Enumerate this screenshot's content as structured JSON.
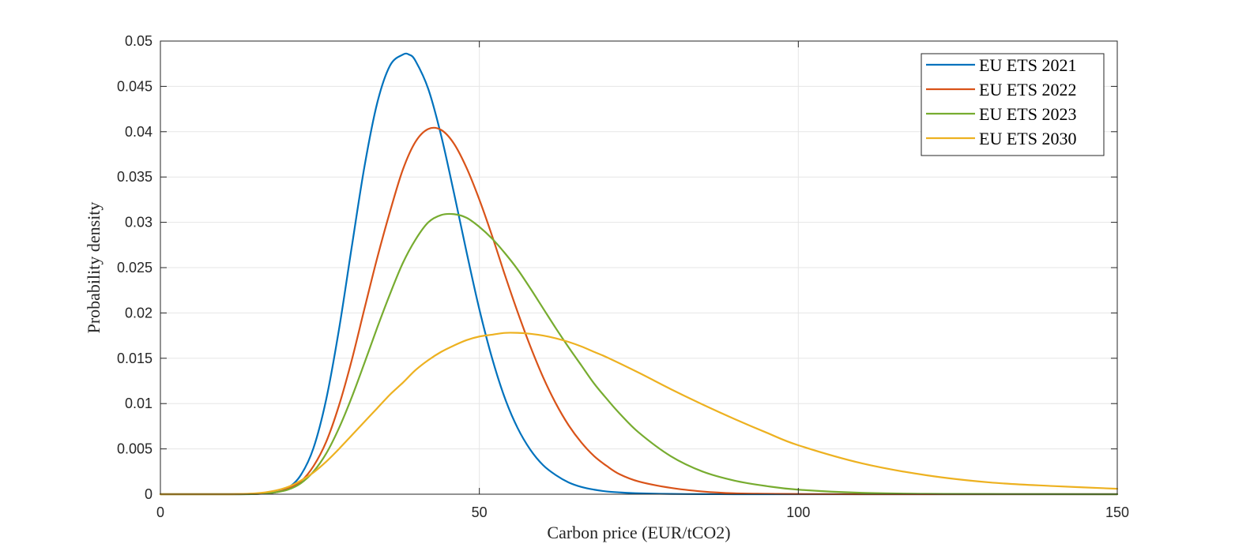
{
  "chart_data": {
    "type": "line",
    "xlabel": "Carbon price (EUR/tCO2)",
    "ylabel": "Probability density",
    "xlim": [
      0,
      150
    ],
    "ylim": [
      0,
      0.05
    ],
    "x_ticks": [
      0,
      50,
      100,
      150
    ],
    "x_tick_labels": [
      "0",
      "50",
      "100",
      "150"
    ],
    "y_ticks": [
      0,
      0.005,
      0.01,
      0.015,
      0.02,
      0.025,
      0.03,
      0.035,
      0.04,
      0.045,
      0.05
    ],
    "y_tick_labels": [
      "0",
      "0.005",
      "0.01",
      "0.015",
      "0.02",
      "0.025",
      "0.03",
      "0.035",
      "0.04",
      "0.045",
      "0.05"
    ],
    "grid": true,
    "legend_position": "top-right",
    "series": [
      {
        "name": "EU ETS 2021",
        "color": "#0072BD",
        "x": [
          0,
          10,
          15,
          18,
          20,
          22,
          24,
          26,
          28,
          30,
          32,
          34,
          36,
          38,
          39,
          40,
          42,
          44,
          46,
          48,
          50,
          52,
          54,
          56,
          58,
          60,
          62,
          64,
          66,
          68,
          70,
          72,
          75,
          80,
          85,
          90,
          95,
          100,
          110,
          120,
          150
        ],
        "y": [
          0,
          0,
          2e-05,
          0.0002,
          0.0007,
          0.0021,
          0.0051,
          0.0105,
          0.0182,
          0.0273,
          0.0362,
          0.0432,
          0.0473,
          0.0485,
          0.0485,
          0.0478,
          0.0447,
          0.0396,
          0.0333,
          0.0267,
          0.0204,
          0.015,
          0.0106,
          0.0073,
          0.0049,
          0.0032,
          0.0021,
          0.0013,
          0.0008,
          0.0005,
          0.0003,
          0.0002,
          0.0001,
          3e-05,
          1e-05,
          0,
          0,
          0,
          0,
          0,
          0
        ]
      },
      {
        "name": "EU ETS 2022",
        "color": "#D95319",
        "x": [
          0,
          10,
          15,
          18,
          20,
          22,
          24,
          26,
          28,
          30,
          32,
          34,
          36,
          38,
          40,
          42,
          44,
          46,
          48,
          50,
          52,
          54,
          56,
          58,
          60,
          62,
          64,
          66,
          68,
          70,
          72,
          75,
          80,
          85,
          90,
          95,
          100,
          110,
          120,
          150
        ],
        "y": [
          0,
          0,
          3e-05,
          0.0002,
          0.0006,
          0.0014,
          0.0031,
          0.0058,
          0.0098,
          0.0148,
          0.0205,
          0.0261,
          0.0312,
          0.0358,
          0.0389,
          0.0403,
          0.0402,
          0.0387,
          0.036,
          0.0325,
          0.0285,
          0.0242,
          0.0201,
          0.0163,
          0.0129,
          0.01,
          0.0076,
          0.0057,
          0.0042,
          0.0031,
          0.0022,
          0.0014,
          0.0007,
          0.0003,
          0.0001,
          5e-05,
          2e-05,
          0,
          0,
          0
        ]
      },
      {
        "name": "EU ETS 2023",
        "color": "#77AC30",
        "x": [
          0,
          10,
          15,
          18,
          20,
          22,
          24,
          26,
          28,
          30,
          32,
          34,
          36,
          38,
          40,
          42,
          44,
          46,
          48,
          50,
          52,
          54,
          56,
          58,
          60,
          62,
          64,
          66,
          68,
          70,
          72,
          75,
          80,
          85,
          90,
          95,
          100,
          110,
          120,
          130,
          150
        ],
        "y": [
          0,
          0,
          2e-05,
          0.0002,
          0.0005,
          0.0012,
          0.0025,
          0.0045,
          0.0073,
          0.0107,
          0.0145,
          0.0184,
          0.0221,
          0.0255,
          0.0281,
          0.03,
          0.0308,
          0.0309,
          0.0305,
          0.0295,
          0.0282,
          0.0266,
          0.0248,
          0.0227,
          0.0205,
          0.0183,
          0.0162,
          0.0142,
          0.0122,
          0.0105,
          0.0089,
          0.0068,
          0.0042,
          0.0025,
          0.0015,
          0.0009,
          0.0005,
          0.00015,
          5e-05,
          2e-05,
          0
        ]
      },
      {
        "name": "EU ETS 2030",
        "color": "#EDB120",
        "x": [
          0,
          10,
          15,
          18,
          20,
          22,
          24,
          26,
          28,
          30,
          32,
          34,
          36,
          38,
          40,
          42,
          44,
          46,
          48,
          50,
          52,
          54,
          56,
          58,
          60,
          62,
          64,
          66,
          68,
          70,
          75,
          80,
          85,
          90,
          95,
          100,
          110,
          120,
          130,
          140,
          150
        ],
        "y": [
          0,
          0,
          0.0001,
          0.0004,
          0.0008,
          0.0015,
          0.0024,
          0.0036,
          0.005,
          0.0065,
          0.008,
          0.0095,
          0.011,
          0.0123,
          0.0137,
          0.0148,
          0.0157,
          0.0164,
          0.017,
          0.0174,
          0.0176,
          0.0178,
          0.0178,
          0.0177,
          0.0175,
          0.0172,
          0.0168,
          0.0163,
          0.0157,
          0.0151,
          0.0134,
          0.0116,
          0.0099,
          0.0083,
          0.0068,
          0.0054,
          0.0034,
          0.0021,
          0.0013,
          0.0009,
          0.0006
        ]
      }
    ]
  }
}
